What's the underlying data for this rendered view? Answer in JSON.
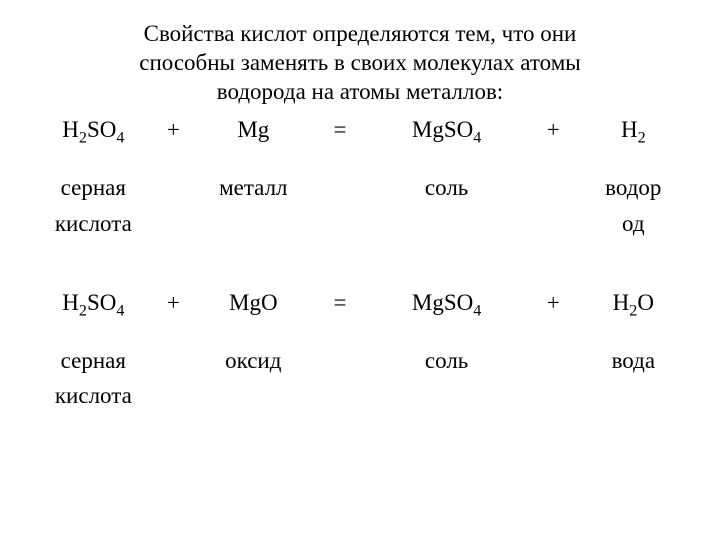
{
  "title_lines": [
    "Свойства кислот определяются тем, что они",
    "способны заменять в своих молекулах атомы",
    "водорода на атомы металлов:"
  ],
  "eq1": {
    "r1": "H₂SO₄",
    "op1": "+",
    "r2": "Mg",
    "eq": "=",
    "p1": "MgSO₄",
    "op2": "+",
    "p2": "H₂",
    "r1_label_l1": "серная",
    "r1_label_l2": "кислота",
    "r2_label_l1": "металл",
    "r2_label_l2": "",
    "p1_label_l1": "соль",
    "p1_label_l2": "",
    "p2_label_l1": "водор",
    "p2_label_l2": "од"
  },
  "eq2": {
    "r1": "H₂SO₄",
    "op1": "+",
    "r2": "MgO",
    "eq": "=",
    "p1": "MgSO₄",
    "op2": "+",
    "p2": "H₂O",
    "r1_label_l1": "серная",
    "r1_label_l2": "кислота",
    "r2_label_l1": "оксид",
    "r2_label_l2": "",
    "p1_label_l1": "соль",
    "p1_label_l2": "",
    "p2_label_l1": "вода",
    "p2_label_l2": ""
  },
  "col_widths": [
    "16%",
    "8%",
    "16%",
    "10%",
    "22%",
    "10%",
    "14%"
  ]
}
